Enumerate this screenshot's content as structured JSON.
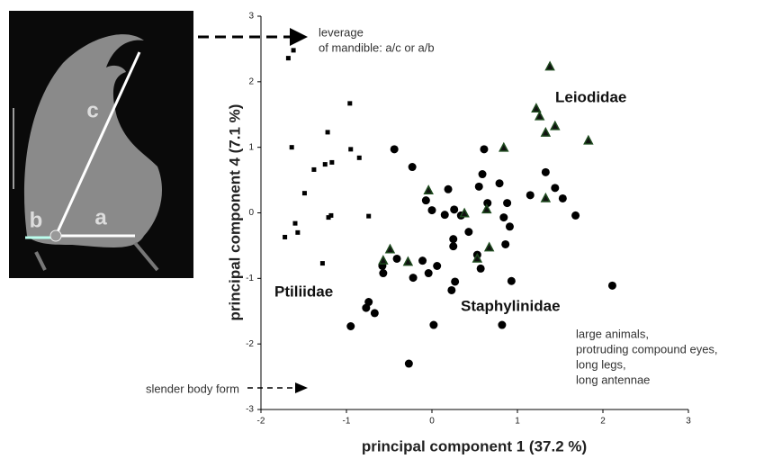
{
  "chart_data": {
    "type": "scatter",
    "xlabel": "principal component 1 (37.2 %)",
    "ylabel": "principal component 4 (7.1 %)",
    "xlim": [
      -2,
      3
    ],
    "xticks": [
      -2,
      -1,
      0,
      1,
      2,
      3
    ],
    "ylim": [
      -3,
      3
    ],
    "yticks": [
      -3,
      -2,
      -1,
      0,
      1,
      2,
      3
    ],
    "series": [
      {
        "name": "Ptiliidae",
        "marker": "square",
        "color": "#000000",
        "x": [
          -1.68,
          -1.62,
          -1.64,
          -1.72,
          -1.6,
          -1.57,
          -1.49,
          -1.38,
          -1.25,
          -1.22,
          -1.17,
          -1.21,
          -1.18,
          -0.96,
          -0.95,
          -0.85,
          -0.74,
          -1.28
        ],
        "y": [
          2.36,
          2.48,
          1.0,
          -0.37,
          -0.16,
          -0.3,
          0.3,
          0.66,
          0.74,
          1.23,
          0.77,
          -0.07,
          -0.04,
          1.67,
          0.97,
          0.84,
          -0.05,
          -0.77
        ]
      },
      {
        "name": "Staphylinidae",
        "marker": "circle",
        "color": "#000000",
        "x": [
          -0.44,
          -0.23,
          -0.07,
          0,
          0.15,
          0.19,
          0.26,
          0.25,
          0.25,
          0.43,
          0.34,
          0.53,
          0.55,
          0.59,
          0.61,
          0.65,
          0.57,
          0.79,
          0.84,
          0.86,
          0.91,
          0.88,
          0.93,
          0.82,
          1.15,
          1.33,
          1.44,
          1.53,
          1.68,
          2.11,
          -0.57,
          -0.58,
          -0.41,
          -0.22,
          -0.11,
          -0.04,
          0.06,
          0.27,
          0.23,
          0.02,
          -0.74,
          -0.77,
          -0.67,
          -0.95,
          -0.27
        ],
        "y": [
          0.97,
          0.7,
          0.19,
          0.04,
          -0.03,
          0.36,
          0.05,
          -0.4,
          -0.51,
          -0.29,
          -0.04,
          -0.64,
          0.4,
          0.59,
          0.97,
          0.15,
          -0.85,
          0.45,
          -0.07,
          -0.48,
          -0.21,
          0.15,
          -1.04,
          -1.71,
          0.27,
          0.62,
          0.38,
          0.22,
          -0.04,
          -1.11,
          -0.92,
          -0.81,
          -0.7,
          -0.99,
          -0.73,
          -0.92,
          -0.81,
          -1.05,
          -1.18,
          -1.71,
          -1.36,
          -1.45,
          -1.53,
          -1.73,
          -2.3
        ]
      },
      {
        "name": "Leiodidae",
        "marker": "triangle",
        "color": "#1e4a1e",
        "x": [
          1.38,
          1.22,
          1.26,
          1.33,
          1.44,
          1.83,
          0.84,
          1.33,
          0.64,
          0.38,
          -0.04,
          0.67,
          0.53,
          -0.49,
          -0.57,
          -0.28
        ],
        "y": [
          2.23,
          1.59,
          1.47,
          1.22,
          1.32,
          1.1,
          0.99,
          0.22,
          0.05,
          -0.01,
          0.34,
          -0.53,
          -0.7,
          -0.56,
          -0.73,
          -0.75
        ]
      }
    ],
    "annotations": [
      {
        "lines": [
          "leverage",
          "of mandible: a/c or a/b"
        ]
      },
      {
        "lines": [
          "slender body form"
        ]
      },
      {
        "lines": [
          "large animals,",
          "protruding compound eyes,",
          "long legs,",
          "long antennae"
        ]
      }
    ],
    "inset_labels": [
      "c",
      "b",
      "a"
    ]
  }
}
